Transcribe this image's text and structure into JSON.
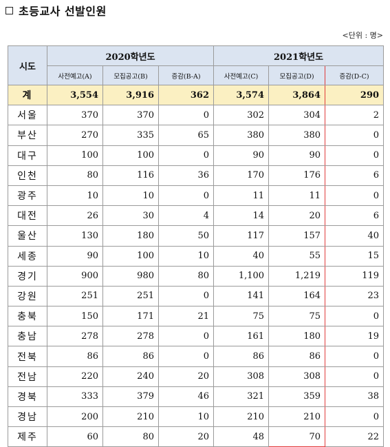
{
  "title": "초등교사 선발인원",
  "unit": "<단위 : 명>",
  "headers": {
    "region": "시도",
    "year2020": "2020학년도",
    "year2021": "2021학년도",
    "cols": [
      "사전예고(A)",
      "모집공고(B)",
      "증감(B-A)",
      "사전예고(C)",
      "모집공고(D)",
      "증감(D-C)"
    ]
  },
  "total": {
    "label": "계",
    "values": [
      "3,554",
      "3,916",
      "362",
      "3,574",
      "3,864",
      "290"
    ]
  },
  "rows": [
    {
      "region": "서울",
      "values": [
        "370",
        "370",
        "0",
        "302",
        "304",
        "2"
      ]
    },
    {
      "region": "부산",
      "values": [
        "270",
        "335",
        "65",
        "380",
        "380",
        "0"
      ]
    },
    {
      "region": "대구",
      "values": [
        "100",
        "100",
        "0",
        "90",
        "90",
        "0"
      ]
    },
    {
      "region": "인천",
      "values": [
        "80",
        "116",
        "36",
        "170",
        "176",
        "6"
      ]
    },
    {
      "region": "광주",
      "values": [
        "10",
        "10",
        "0",
        "11",
        "11",
        "0"
      ]
    },
    {
      "region": "대전",
      "values": [
        "26",
        "30",
        "4",
        "14",
        "20",
        "6"
      ]
    },
    {
      "region": "울산",
      "values": [
        "130",
        "180",
        "50",
        "117",
        "157",
        "40"
      ]
    },
    {
      "region": "세종",
      "values": [
        "90",
        "100",
        "10",
        "40",
        "55",
        "15"
      ]
    },
    {
      "region": "경기",
      "values": [
        "900",
        "980",
        "80",
        "1,100",
        "1,219",
        "119"
      ]
    },
    {
      "region": "강원",
      "values": [
        "251",
        "251",
        "0",
        "141",
        "164",
        "23"
      ]
    },
    {
      "region": "충북",
      "values": [
        "150",
        "171",
        "21",
        "75",
        "75",
        "0"
      ]
    },
    {
      "region": "충남",
      "values": [
        "278",
        "278",
        "0",
        "161",
        "180",
        "19"
      ]
    },
    {
      "region": "전북",
      "values": [
        "86",
        "86",
        "0",
        "86",
        "86",
        "0"
      ]
    },
    {
      "region": "전남",
      "values": [
        "220",
        "240",
        "20",
        "308",
        "308",
        "0"
      ]
    },
    {
      "region": "경북",
      "values": [
        "333",
        "379",
        "46",
        "321",
        "359",
        "38"
      ]
    },
    {
      "region": "경남",
      "values": [
        "200",
        "210",
        "10",
        "210",
        "210",
        "0"
      ]
    },
    {
      "region": "제주",
      "values": [
        "60",
        "80",
        "20",
        "48",
        "70",
        "22"
      ]
    }
  ],
  "colors": {
    "header_bg": "#dbe4f1",
    "total_bg": "#fbf0c2",
    "highlight_border": "#e03a3a"
  }
}
